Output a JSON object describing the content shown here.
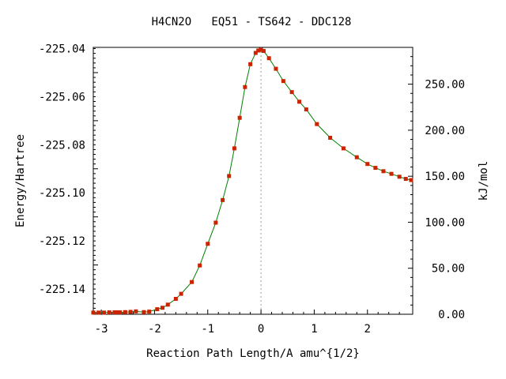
{
  "chart_data": {
    "type": "line",
    "title": "H4CN2O   EQ51 - TS642 - DDC128",
    "xlabel": "Reaction Path Length/A amu^{1/2}",
    "ylabel": "Energy/Hartree",
    "y2label": "kJ/mol",
    "xlim": [
      -3.15,
      2.85
    ],
    "ylim": [
      -225.1505,
      -225.0395
    ],
    "y2lim": [
      0,
      290
    ],
    "x_ticks": [
      "-3",
      "-2",
      "-1",
      "0",
      "1",
      "2"
    ],
    "x_tick_values": [
      -3,
      -2,
      -1,
      0,
      1,
      2
    ],
    "y_ticks": [
      "-225.04",
      "-225.06",
      "-225.08",
      "-225.10",
      "-225.12",
      "-225.14"
    ],
    "y_tick_values": [
      -225.04,
      -225.06,
      -225.08,
      -225.1,
      -225.12,
      -225.14
    ],
    "y2_ticks": [
      "250.00",
      "200.00",
      "150.00",
      "100.00",
      "50.00",
      "0.00"
    ],
    "y2_tick_values": [
      250,
      200,
      150,
      100,
      50,
      0
    ],
    "ts_x": 0,
    "grid": false,
    "line_color": "#008000",
    "marker_color": "#cc2200",
    "ts_line_color": "#999999",
    "series": [
      {
        "x": [
          -3.15,
          -3.05,
          -2.95,
          -2.85,
          -2.75,
          -2.7,
          -2.65,
          -2.55,
          -2.45,
          -2.35,
          -2.2,
          -2.1,
          -1.95,
          -1.85,
          -1.75,
          -1.6,
          -1.5,
          -1.3,
          -1.15,
          -1.0,
          -0.85,
          -0.72,
          -0.6,
          -0.5,
          -0.4,
          -0.3,
          -0.2,
          -0.1,
          -0.05,
          0.0,
          0.05,
          0.15,
          0.28,
          0.42,
          0.58,
          0.72,
          0.85,
          1.05,
          1.3,
          1.55,
          1.8,
          2.0,
          2.15,
          2.3,
          2.45,
          2.6,
          2.72,
          2.82
        ],
        "y": [
          -225.1498,
          -225.1498,
          -225.1498,
          -225.1497,
          -225.1497,
          -225.1497,
          -225.1497,
          -225.1496,
          -225.1495,
          -225.1493,
          -225.1496,
          -225.1494,
          -225.1484,
          -225.1478,
          -225.1465,
          -225.1441,
          -225.142,
          -225.1371,
          -225.1302,
          -225.1212,
          -225.1124,
          -225.103,
          -225.093,
          -225.0815,
          -225.0688,
          -225.056,
          -225.0465,
          -225.0418,
          -225.0408,
          -225.0405,
          -225.041,
          -225.044,
          -225.0484,
          -225.0535,
          -225.0581,
          -225.0621,
          -225.0653,
          -225.0714,
          -225.0771,
          -225.0815,
          -225.0852,
          -225.088,
          -225.0896,
          -225.091,
          -225.0921,
          -225.0933,
          -225.0942,
          -225.0947
        ]
      }
    ]
  }
}
